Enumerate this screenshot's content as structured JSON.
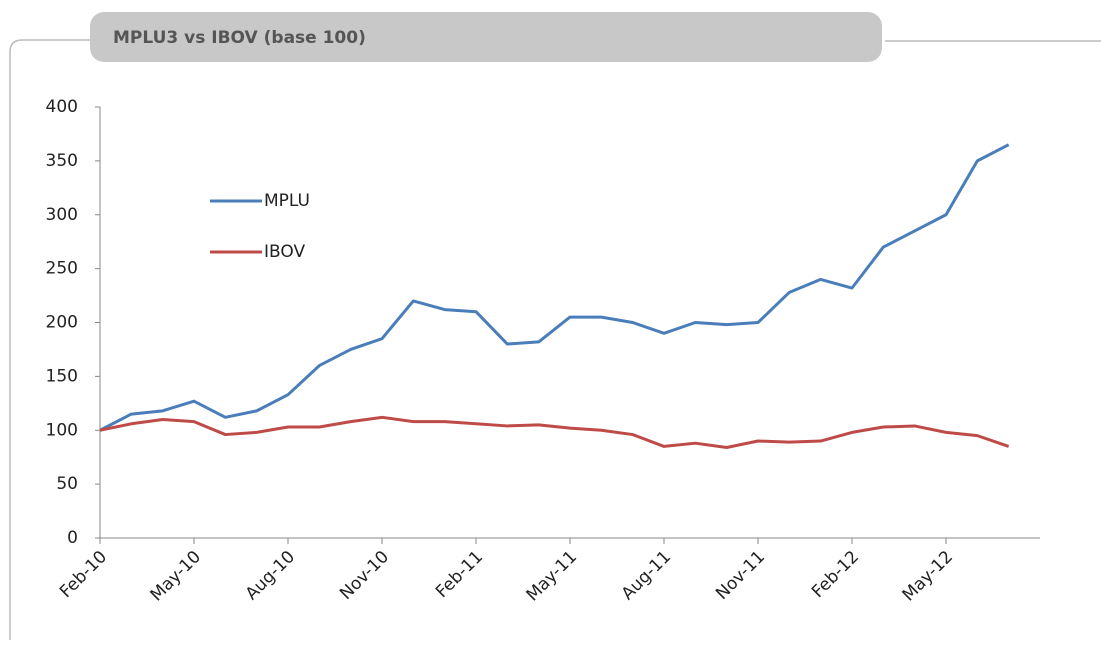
{
  "chart_data": {
    "type": "line",
    "title": "MPLU3 vs IBOV (base 100)",
    "x": [
      "2010-02",
      "2010-03",
      "2010-04",
      "2010-05",
      "2010-06",
      "2010-07",
      "2010-08",
      "2010-09",
      "2010-10",
      "2010-11",
      "2010-12",
      "2011-01",
      "2011-02",
      "2011-03",
      "2011-04",
      "2011-05",
      "2011-06",
      "2011-07",
      "2011-08",
      "2011-09",
      "2011-10",
      "2011-11",
      "2011-12",
      "2012-01",
      "2012-02",
      "2012-03",
      "2012-04",
      "2012-05",
      "2012-06",
      "2012-07"
    ],
    "series": [
      {
        "name": "MPLU",
        "color": "#4a7ebb",
        "values": [
          100,
          115,
          118,
          127,
          112,
          118,
          133,
          160,
          175,
          185,
          220,
          212,
          210,
          180,
          182,
          205,
          205,
          200,
          190,
          200,
          198,
          200,
          228,
          240,
          232,
          270,
          285,
          300,
          350,
          365
        ]
      },
      {
        "name": "IBOV",
        "color": "#be4b48",
        "values": [
          100,
          106,
          110,
          108,
          96,
          98,
          103,
          103,
          108,
          112,
          108,
          108,
          106,
          104,
          105,
          102,
          100,
          96,
          85,
          88,
          84,
          90,
          89,
          90,
          98,
          103,
          104,
          98,
          95,
          85
        ]
      }
    ],
    "xlim": [
      "2010-02",
      "2012-08"
    ],
    "xticks": [
      {
        "value": "2010-02",
        "label": "Feb-10"
      },
      {
        "value": "2010-05",
        "label": "May-10"
      },
      {
        "value": "2010-08",
        "label": "Aug-10"
      },
      {
        "value": "2010-11",
        "label": "Nov-10"
      },
      {
        "value": "2011-02",
        "label": "Feb-11"
      },
      {
        "value": "2011-05",
        "label": "May-11"
      },
      {
        "value": "2011-08",
        "label": "Aug-11"
      },
      {
        "value": "2011-11",
        "label": "Nov-11"
      },
      {
        "value": "2012-02",
        "label": "Feb-12"
      },
      {
        "value": "2012-05",
        "label": "May-12"
      }
    ],
    "ylim": [
      0,
      400
    ],
    "yticks": [
      0,
      50,
      100,
      150,
      200,
      250,
      300,
      350,
      400
    ],
    "grid": false
  }
}
